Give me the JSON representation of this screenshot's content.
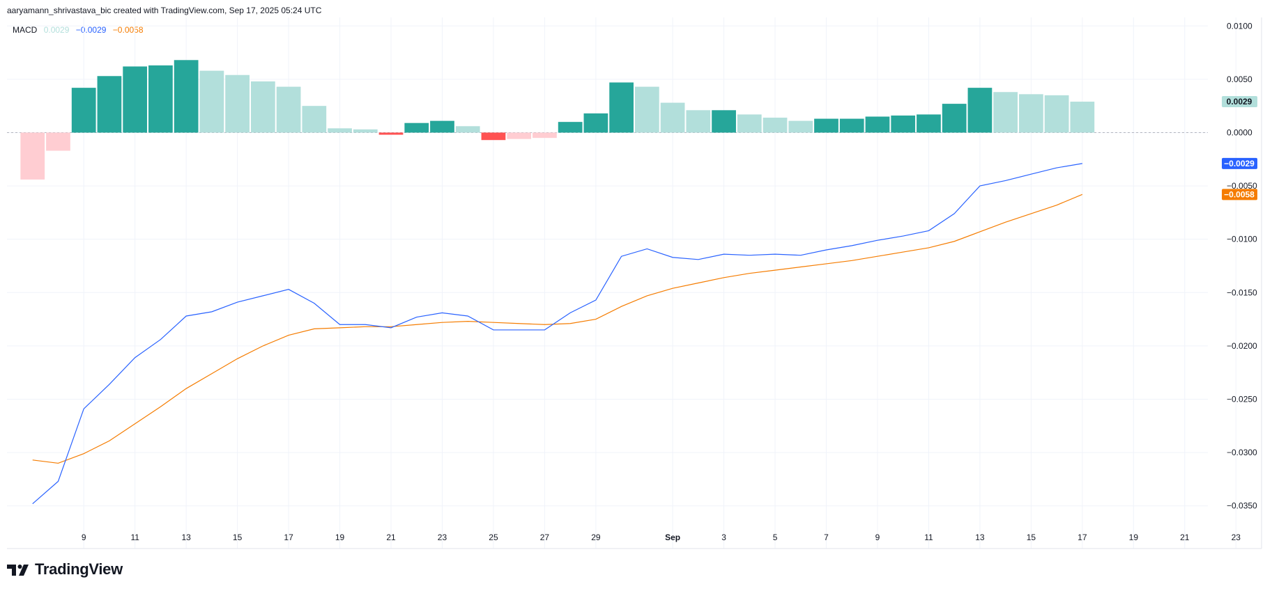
{
  "attribution": "aaryamann_shrivastava_bic created with TradingView.com, Sep 17, 2025 05:24 UTC",
  "legend": {
    "label": "MACD",
    "histogram_value": "0.0029",
    "macd_value": "−0.0029",
    "signal_value": "−0.0058"
  },
  "brand": "TradingView",
  "colors": {
    "hist_pos_up": "#26a69a",
    "hist_pos_down": "#b2dfdb",
    "hist_neg_down": "#ff5252",
    "hist_neg_up": "#ffcdd2",
    "macd_line": "#2962ff",
    "signal_line": "#f57c00",
    "grid": "#f0f3fa",
    "zero_line": "#b2b5be"
  },
  "chart_data": {
    "type": "bar",
    "title": "",
    "xlabel": "",
    "ylabel": "",
    "ylim": [
      -0.039,
      0.0108
    ],
    "y_ticks": [
      0.01,
      0.005,
      0.0,
      -0.005,
      -0.01,
      -0.015,
      -0.02,
      -0.025,
      -0.03,
      -0.035
    ],
    "y_tick_labels": [
      "0.0100",
      "0.0050",
      "0.0000",
      "−0.0050",
      "−0.0100",
      "−0.0150",
      "−0.0200",
      "−0.0250",
      "−0.0300",
      "−0.0350"
    ],
    "x_range": [
      "2025-08-06",
      "2025-09-24"
    ],
    "x_ticks": [
      {
        "date": "2025-08-09",
        "label": "9"
      },
      {
        "date": "2025-08-11",
        "label": "11"
      },
      {
        "date": "2025-08-13",
        "label": "13"
      },
      {
        "date": "2025-08-15",
        "label": "15"
      },
      {
        "date": "2025-08-17",
        "label": "17"
      },
      {
        "date": "2025-08-19",
        "label": "19"
      },
      {
        "date": "2025-08-21",
        "label": "21"
      },
      {
        "date": "2025-08-23",
        "label": "23"
      },
      {
        "date": "2025-08-25",
        "label": "25"
      },
      {
        "date": "2025-08-27",
        "label": "27"
      },
      {
        "date": "2025-08-29",
        "label": "29"
      },
      {
        "date": "2025-09-01",
        "label": "Sep",
        "bold": true
      },
      {
        "date": "2025-09-03",
        "label": "3"
      },
      {
        "date": "2025-09-05",
        "label": "5"
      },
      {
        "date": "2025-09-07",
        "label": "7"
      },
      {
        "date": "2025-09-09",
        "label": "9"
      },
      {
        "date": "2025-09-11",
        "label": "11"
      },
      {
        "date": "2025-09-13",
        "label": "13"
      },
      {
        "date": "2025-09-15",
        "label": "15"
      },
      {
        "date": "2025-09-17",
        "label": "17"
      },
      {
        "date": "2025-09-19",
        "label": "19"
      },
      {
        "date": "2025-09-21",
        "label": "21"
      },
      {
        "date": "2025-09-23",
        "label": "23"
      }
    ],
    "dates": [
      "2025-08-07",
      "2025-08-08",
      "2025-08-09",
      "2025-08-10",
      "2025-08-11",
      "2025-08-12",
      "2025-08-13",
      "2025-08-14",
      "2025-08-15",
      "2025-08-16",
      "2025-08-17",
      "2025-08-18",
      "2025-08-19",
      "2025-08-20",
      "2025-08-21",
      "2025-08-22",
      "2025-08-23",
      "2025-08-24",
      "2025-08-25",
      "2025-08-26",
      "2025-08-27",
      "2025-08-28",
      "2025-08-29",
      "2025-08-30",
      "2025-08-31",
      "2025-09-01",
      "2025-09-02",
      "2025-09-03",
      "2025-09-04",
      "2025-09-05",
      "2025-09-06",
      "2025-09-07",
      "2025-09-08",
      "2025-09-09",
      "2025-09-10",
      "2025-09-11",
      "2025-09-12",
      "2025-09-13",
      "2025-09-14",
      "2025-09-15",
      "2025-09-16",
      "2025-09-17"
    ],
    "series": [
      {
        "kind": "histogram",
        "values": [
          -0.0044,
          -0.0017,
          0.0042,
          0.0053,
          0.0062,
          0.0063,
          0.0068,
          0.0058,
          0.0054,
          0.0048,
          0.0043,
          0.0025,
          0.0004,
          0.0003,
          -0.0002,
          0.0009,
          0.0011,
          0.0006,
          -0.0007,
          -0.0006,
          -0.0005,
          0.001,
          0.0018,
          0.0047,
          0.0043,
          0.0028,
          0.0021,
          0.0021,
          0.0017,
          0.0014,
          0.0011,
          0.0013,
          0.0013,
          0.0015,
          0.0016,
          0.0017,
          0.0027,
          0.0042,
          0.0038,
          0.0036,
          0.0035,
          0.0029
        ],
        "styles": [
          "neg_up",
          "neg_up",
          "pos_up",
          "pos_up",
          "pos_up",
          "pos_up",
          "pos_up",
          "pos_down",
          "pos_down",
          "pos_down",
          "pos_down",
          "pos_down",
          "pos_down",
          "pos_down",
          "neg_down",
          "pos_up",
          "pos_up",
          "pos_down",
          "neg_down",
          "neg_up",
          "neg_up",
          "pos_up",
          "pos_up",
          "pos_up",
          "pos_down",
          "pos_down",
          "pos_down",
          "pos_up",
          "pos_down",
          "pos_down",
          "pos_down",
          "pos_up",
          "pos_up",
          "pos_up",
          "pos_up",
          "pos_up",
          "pos_up",
          "pos_up",
          "pos_down",
          "pos_down",
          "pos_down",
          "pos_down"
        ]
      },
      {
        "kind": "line",
        "role": "macd",
        "values": [
          -0.0348,
          -0.0327,
          -0.0259,
          -0.0236,
          -0.0211,
          -0.0194,
          -0.0172,
          -0.0168,
          -0.0159,
          -0.0153,
          -0.0147,
          -0.016,
          -0.018,
          -0.018,
          -0.0183,
          -0.0173,
          -0.0169,
          -0.0172,
          -0.0185,
          -0.0185,
          -0.0185,
          -0.0169,
          -0.0157,
          -0.0116,
          -0.0109,
          -0.0117,
          -0.0119,
          -0.0114,
          -0.0115,
          -0.0114,
          -0.0115,
          -0.011,
          -0.0106,
          -0.0101,
          -0.0097,
          -0.0092,
          -0.0076,
          -0.005,
          -0.0045,
          -0.0039,
          -0.0033,
          -0.0029
        ]
      },
      {
        "kind": "line",
        "role": "signal",
        "values": [
          -0.0307,
          -0.031,
          -0.0301,
          -0.0289,
          -0.0273,
          -0.0257,
          -0.024,
          -0.0226,
          -0.0212,
          -0.02,
          -0.019,
          -0.0184,
          -0.0183,
          -0.0182,
          -0.0182,
          -0.018,
          -0.0178,
          -0.0177,
          -0.0178,
          -0.0179,
          -0.018,
          -0.0179,
          -0.0175,
          -0.0163,
          -0.0153,
          -0.0146,
          -0.0141,
          -0.0136,
          -0.0132,
          -0.0129,
          -0.0126,
          -0.0123,
          -0.012,
          -0.0116,
          -0.0112,
          -0.0108,
          -0.0102,
          -0.0093,
          -0.0084,
          -0.0076,
          -0.0068,
          -0.0058
        ]
      }
    ],
    "price_badges": [
      {
        "value": 0.0029,
        "label": "0.0029",
        "bg": "#b2dfdb",
        "fg": "#131722"
      },
      {
        "value": -0.0029,
        "label": "−0.0029",
        "bg": "#2962ff",
        "fg": "#ffffff"
      },
      {
        "value": -0.0058,
        "label": "−0.0058",
        "bg": "#f57c00",
        "fg": "#ffffff"
      }
    ]
  }
}
